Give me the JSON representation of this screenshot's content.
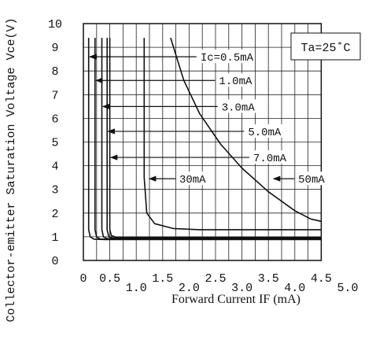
{
  "chart_data": {
    "type": "line",
    "title": "",
    "xlabel": "Forward Current  IF (mA)",
    "ylabel": "Collector-emitter Saturation Voltage Vce(V)",
    "xlim": [
      0,
      5.0
    ],
    "ylim": [
      0,
      10
    ],
    "x_ticks": [
      "0",
      "0.5",
      "1.0",
      "1.5",
      "2.0",
      "2.5",
      "3.0",
      "3.5",
      "4.0",
      "4.5",
      "5.0"
    ],
    "y_ticks": [
      "0",
      "1",
      "2",
      "3",
      "4",
      "5",
      "6",
      "7",
      "8",
      "9",
      "10"
    ],
    "grid": true,
    "condition_label": "Ta=25˚C",
    "series": [
      {
        "name": "Ic=0.5mA",
        "x": [
          0.1,
          0.1,
          0.13,
          0.2,
          0.4,
          4.5
        ],
        "y": [
          9.4,
          1.3,
          1.0,
          0.9,
          0.88,
          0.88
        ]
      },
      {
        "name": "1.0mA",
        "x": [
          0.22,
          0.22,
          0.25,
          0.32,
          0.5,
          4.5
        ],
        "y": [
          9.4,
          1.3,
          1.0,
          0.9,
          0.9,
          0.9
        ]
      },
      {
        "name": "3.0mA",
        "x": [
          0.35,
          0.35,
          0.38,
          0.45,
          0.6,
          4.5
        ],
        "y": [
          9.4,
          1.3,
          1.0,
          0.92,
          0.92,
          0.92
        ]
      },
      {
        "name": "5.0mA",
        "x": [
          0.45,
          0.45,
          0.48,
          0.55,
          0.7,
          4.5
        ],
        "y": [
          9.4,
          1.3,
          1.0,
          0.95,
          0.95,
          0.95
        ]
      },
      {
        "name": "7.0mA",
        "x": [
          0.5,
          0.5,
          0.53,
          0.62,
          0.8,
          4.5
        ],
        "y": [
          9.4,
          1.3,
          1.05,
          0.98,
          0.98,
          0.98
        ]
      },
      {
        "name": "30mA",
        "x": [
          1.15,
          1.15,
          1.2,
          1.35,
          1.7,
          2.2,
          4.5
        ],
        "y": [
          9.4,
          3.5,
          2.0,
          1.55,
          1.35,
          1.3,
          1.3
        ]
      },
      {
        "name": "50mA",
        "x": [
          1.65,
          1.9,
          2.2,
          2.6,
          3.0,
          3.5,
          4.0,
          4.3,
          4.5
        ],
        "y": [
          9.4,
          7.6,
          6.2,
          4.9,
          3.9,
          2.9,
          2.1,
          1.75,
          1.65
        ]
      }
    ],
    "annotations": [
      {
        "series": "Ic=0.5mA",
        "text": "Ic=0.5mA",
        "text_x": 2.2,
        "text_y": 8.6,
        "arrow_to_x": 0.12,
        "arrow_to_y": 8.6
      },
      {
        "series": "1.0mA",
        "text": "1.0mA",
        "text_x": 2.55,
        "text_y": 7.6,
        "arrow_to_x": 0.24,
        "arrow_to_y": 7.6
      },
      {
        "series": "3.0mA",
        "text": "3.0mA",
        "text_x": 2.6,
        "text_y": 6.5,
        "arrow_to_x": 0.37,
        "arrow_to_y": 6.5
      },
      {
        "series": "5.0mA",
        "text": "5.0mA",
        "text_x": 3.1,
        "text_y": 5.45,
        "arrow_to_x": 0.47,
        "arrow_to_y": 5.45
      },
      {
        "series": "7.0mA",
        "text": "7.0mA",
        "text_x": 3.2,
        "text_y": 4.35,
        "arrow_to_x": 0.52,
        "arrow_to_y": 4.35
      },
      {
        "series": "30mA",
        "text": "30mA",
        "text_x": 1.8,
        "text_y": 3.45,
        "arrow_to_x": 1.25,
        "arrow_to_y": 3.45
      },
      {
        "series": "50mA",
        "text": "50mA",
        "text_x": 4.05,
        "text_y": 3.45,
        "arrow_to_x": 3.6,
        "arrow_to_y": 3.45
      }
    ]
  }
}
